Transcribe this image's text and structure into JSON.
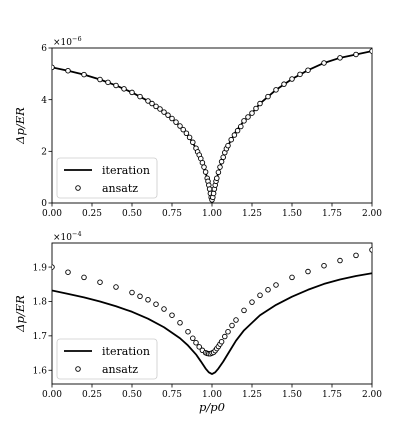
{
  "figure": {
    "panels_label": "two stacked line/marker plots"
  },
  "chart_data": [
    {
      "type": "line",
      "xlim": [
        0.0,
        2.0
      ],
      "ylim": [
        0.0,
        6.0
      ],
      "y_multiplier": "×10",
      "y_multiplier_exp": "−6",
      "ylabel": "Δp/ER",
      "xlabel": "",
      "x_ticks": [
        "0.00",
        "0.25",
        "0.50",
        "0.75",
        "1.00",
        "1.25",
        "1.50",
        "1.75",
        "2.00"
      ],
      "x_tick_values": [
        0,
        0.25,
        0.5,
        0.75,
        1.0,
        1.25,
        1.5,
        1.75,
        2.0
      ],
      "y_ticks": [
        "0",
        "2",
        "4",
        "6"
      ],
      "y_tick_values": [
        0,
        2,
        4,
        6
      ],
      "legend": {
        "position": "lower-left",
        "items": [
          "iteration",
          "ansatz"
        ]
      },
      "series": [
        {
          "name": "iteration",
          "style": "line",
          "x": [
            0.0,
            0.1,
            0.2,
            0.3,
            0.4,
            0.5,
            0.6,
            0.7,
            0.75,
            0.8,
            0.85,
            0.9,
            0.93,
            0.95,
            0.97,
            0.98,
            0.99,
            1.0,
            1.01,
            1.02,
            1.03,
            1.05,
            1.07,
            1.1,
            1.15,
            1.2,
            1.25,
            1.3,
            1.4,
            1.5,
            1.6,
            1.7,
            1.8,
            1.9,
            2.0
          ],
          "y": [
            5.25,
            5.12,
            4.97,
            4.78,
            4.55,
            4.28,
            3.95,
            3.52,
            3.27,
            2.98,
            2.62,
            2.12,
            1.72,
            1.39,
            0.96,
            0.69,
            0.37,
            0.12,
            0.37,
            0.69,
            0.96,
            1.39,
            1.77,
            2.22,
            2.78,
            3.18,
            3.48,
            3.85,
            4.38,
            4.8,
            5.14,
            5.42,
            5.62,
            5.75,
            5.88
          ]
        },
        {
          "name": "ansatz",
          "style": "open-circle",
          "x": [
            0.0,
            0.1,
            0.2,
            0.3,
            0.35,
            0.4,
            0.45,
            0.5,
            0.55,
            0.6,
            0.625,
            0.65,
            0.675,
            0.7,
            0.725,
            0.75,
            0.775,
            0.8,
            0.82,
            0.84,
            0.86,
            0.88,
            0.9,
            0.91,
            0.92,
            0.93,
            0.94,
            0.95,
            0.96,
            0.97,
            0.975,
            0.98,
            0.985,
            0.99,
            0.995,
            1.0,
            1.005,
            1.01,
            1.015,
            1.02,
            1.025,
            1.03,
            1.04,
            1.05,
            1.06,
            1.07,
            1.08,
            1.09,
            1.1,
            1.12,
            1.14,
            1.16,
            1.18,
            1.2,
            1.225,
            1.25,
            1.275,
            1.3,
            1.35,
            1.4,
            1.45,
            1.5,
            1.55,
            1.6,
            1.7,
            1.8,
            1.9,
            2.0
          ],
          "y": [
            5.25,
            5.12,
            4.97,
            4.78,
            4.67,
            4.55,
            4.42,
            4.28,
            4.12,
            3.95,
            3.85,
            3.74,
            3.64,
            3.52,
            3.4,
            3.27,
            3.13,
            2.98,
            2.84,
            2.7,
            2.54,
            2.35,
            2.12,
            1.98,
            1.86,
            1.72,
            1.56,
            1.39,
            1.2,
            0.96,
            0.84,
            0.69,
            0.54,
            0.37,
            0.22,
            0.12,
            0.22,
            0.37,
            0.54,
            0.69,
            0.84,
            0.96,
            1.19,
            1.39,
            1.6,
            1.77,
            1.95,
            2.1,
            2.22,
            2.45,
            2.63,
            2.8,
            2.96,
            3.18,
            3.33,
            3.48,
            3.66,
            3.85,
            4.12,
            4.38,
            4.6,
            4.8,
            4.98,
            5.14,
            5.42,
            5.62,
            5.75,
            5.88
          ]
        }
      ]
    },
    {
      "type": "line",
      "xlim": [
        0.0,
        2.0
      ],
      "ylim": [
        1.56,
        1.97
      ],
      "y_multiplier": "×10",
      "y_multiplier_exp": "−4",
      "ylabel": "Δp/ER",
      "xlabel": "p/p0",
      "x_ticks": [
        "0.00",
        "0.25",
        "0.50",
        "0.75",
        "1.00",
        "1.25",
        "1.50",
        "1.75",
        "2.00"
      ],
      "x_tick_values": [
        0,
        0.25,
        0.5,
        0.75,
        1.0,
        1.25,
        1.5,
        1.75,
        2.0
      ],
      "y_ticks": [
        "1.6",
        "1.7",
        "1.8",
        "1.9"
      ],
      "y_tick_values": [
        1.6,
        1.7,
        1.8,
        1.9
      ],
      "legend": {
        "position": "lower-left",
        "items": [
          "iteration",
          "ansatz"
        ]
      },
      "series": [
        {
          "name": "iteration",
          "style": "line",
          "x": [
            0.0,
            0.1,
            0.2,
            0.3,
            0.4,
            0.5,
            0.6,
            0.7,
            0.8,
            0.85,
            0.9,
            0.93,
            0.96,
            0.98,
            1.0,
            1.02,
            1.04,
            1.07,
            1.1,
            1.15,
            1.2,
            1.3,
            1.4,
            1.5,
            1.6,
            1.7,
            1.8,
            1.9,
            2.0
          ],
          "y": [
            1.832,
            1.822,
            1.812,
            1.8,
            1.786,
            1.77,
            1.75,
            1.725,
            1.693,
            1.672,
            1.646,
            1.626,
            1.605,
            1.594,
            1.589,
            1.594,
            1.605,
            1.625,
            1.648,
            1.686,
            1.716,
            1.76,
            1.79,
            1.814,
            1.834,
            1.851,
            1.864,
            1.874,
            1.882
          ]
        },
        {
          "name": "ansatz",
          "style": "open-circle",
          "x": [
            0.0,
            0.1,
            0.2,
            0.3,
            0.4,
            0.5,
            0.55,
            0.6,
            0.65,
            0.7,
            0.75,
            0.8,
            0.85,
            0.88,
            0.9,
            0.92,
            0.94,
            0.96,
            0.97,
            0.98,
            0.99,
            1.0,
            1.01,
            1.02,
            1.03,
            1.04,
            1.05,
            1.06,
            1.08,
            1.1,
            1.125,
            1.15,
            1.2,
            1.25,
            1.3,
            1.35,
            1.4,
            1.5,
            1.6,
            1.7,
            1.8,
            1.9,
            2.0
          ],
          "y": [
            1.9,
            1.885,
            1.87,
            1.856,
            1.842,
            1.826,
            1.815,
            1.805,
            1.792,
            1.778,
            1.76,
            1.738,
            1.712,
            1.693,
            1.68,
            1.668,
            1.658,
            1.651,
            1.649,
            1.648,
            1.648,
            1.65,
            1.652,
            1.657,
            1.663,
            1.669,
            1.676,
            1.683,
            1.698,
            1.712,
            1.73,
            1.746,
            1.774,
            1.798,
            1.818,
            1.834,
            1.848,
            1.87,
            1.887,
            1.904,
            1.919,
            1.934,
            1.95
          ]
        }
      ]
    }
  ]
}
